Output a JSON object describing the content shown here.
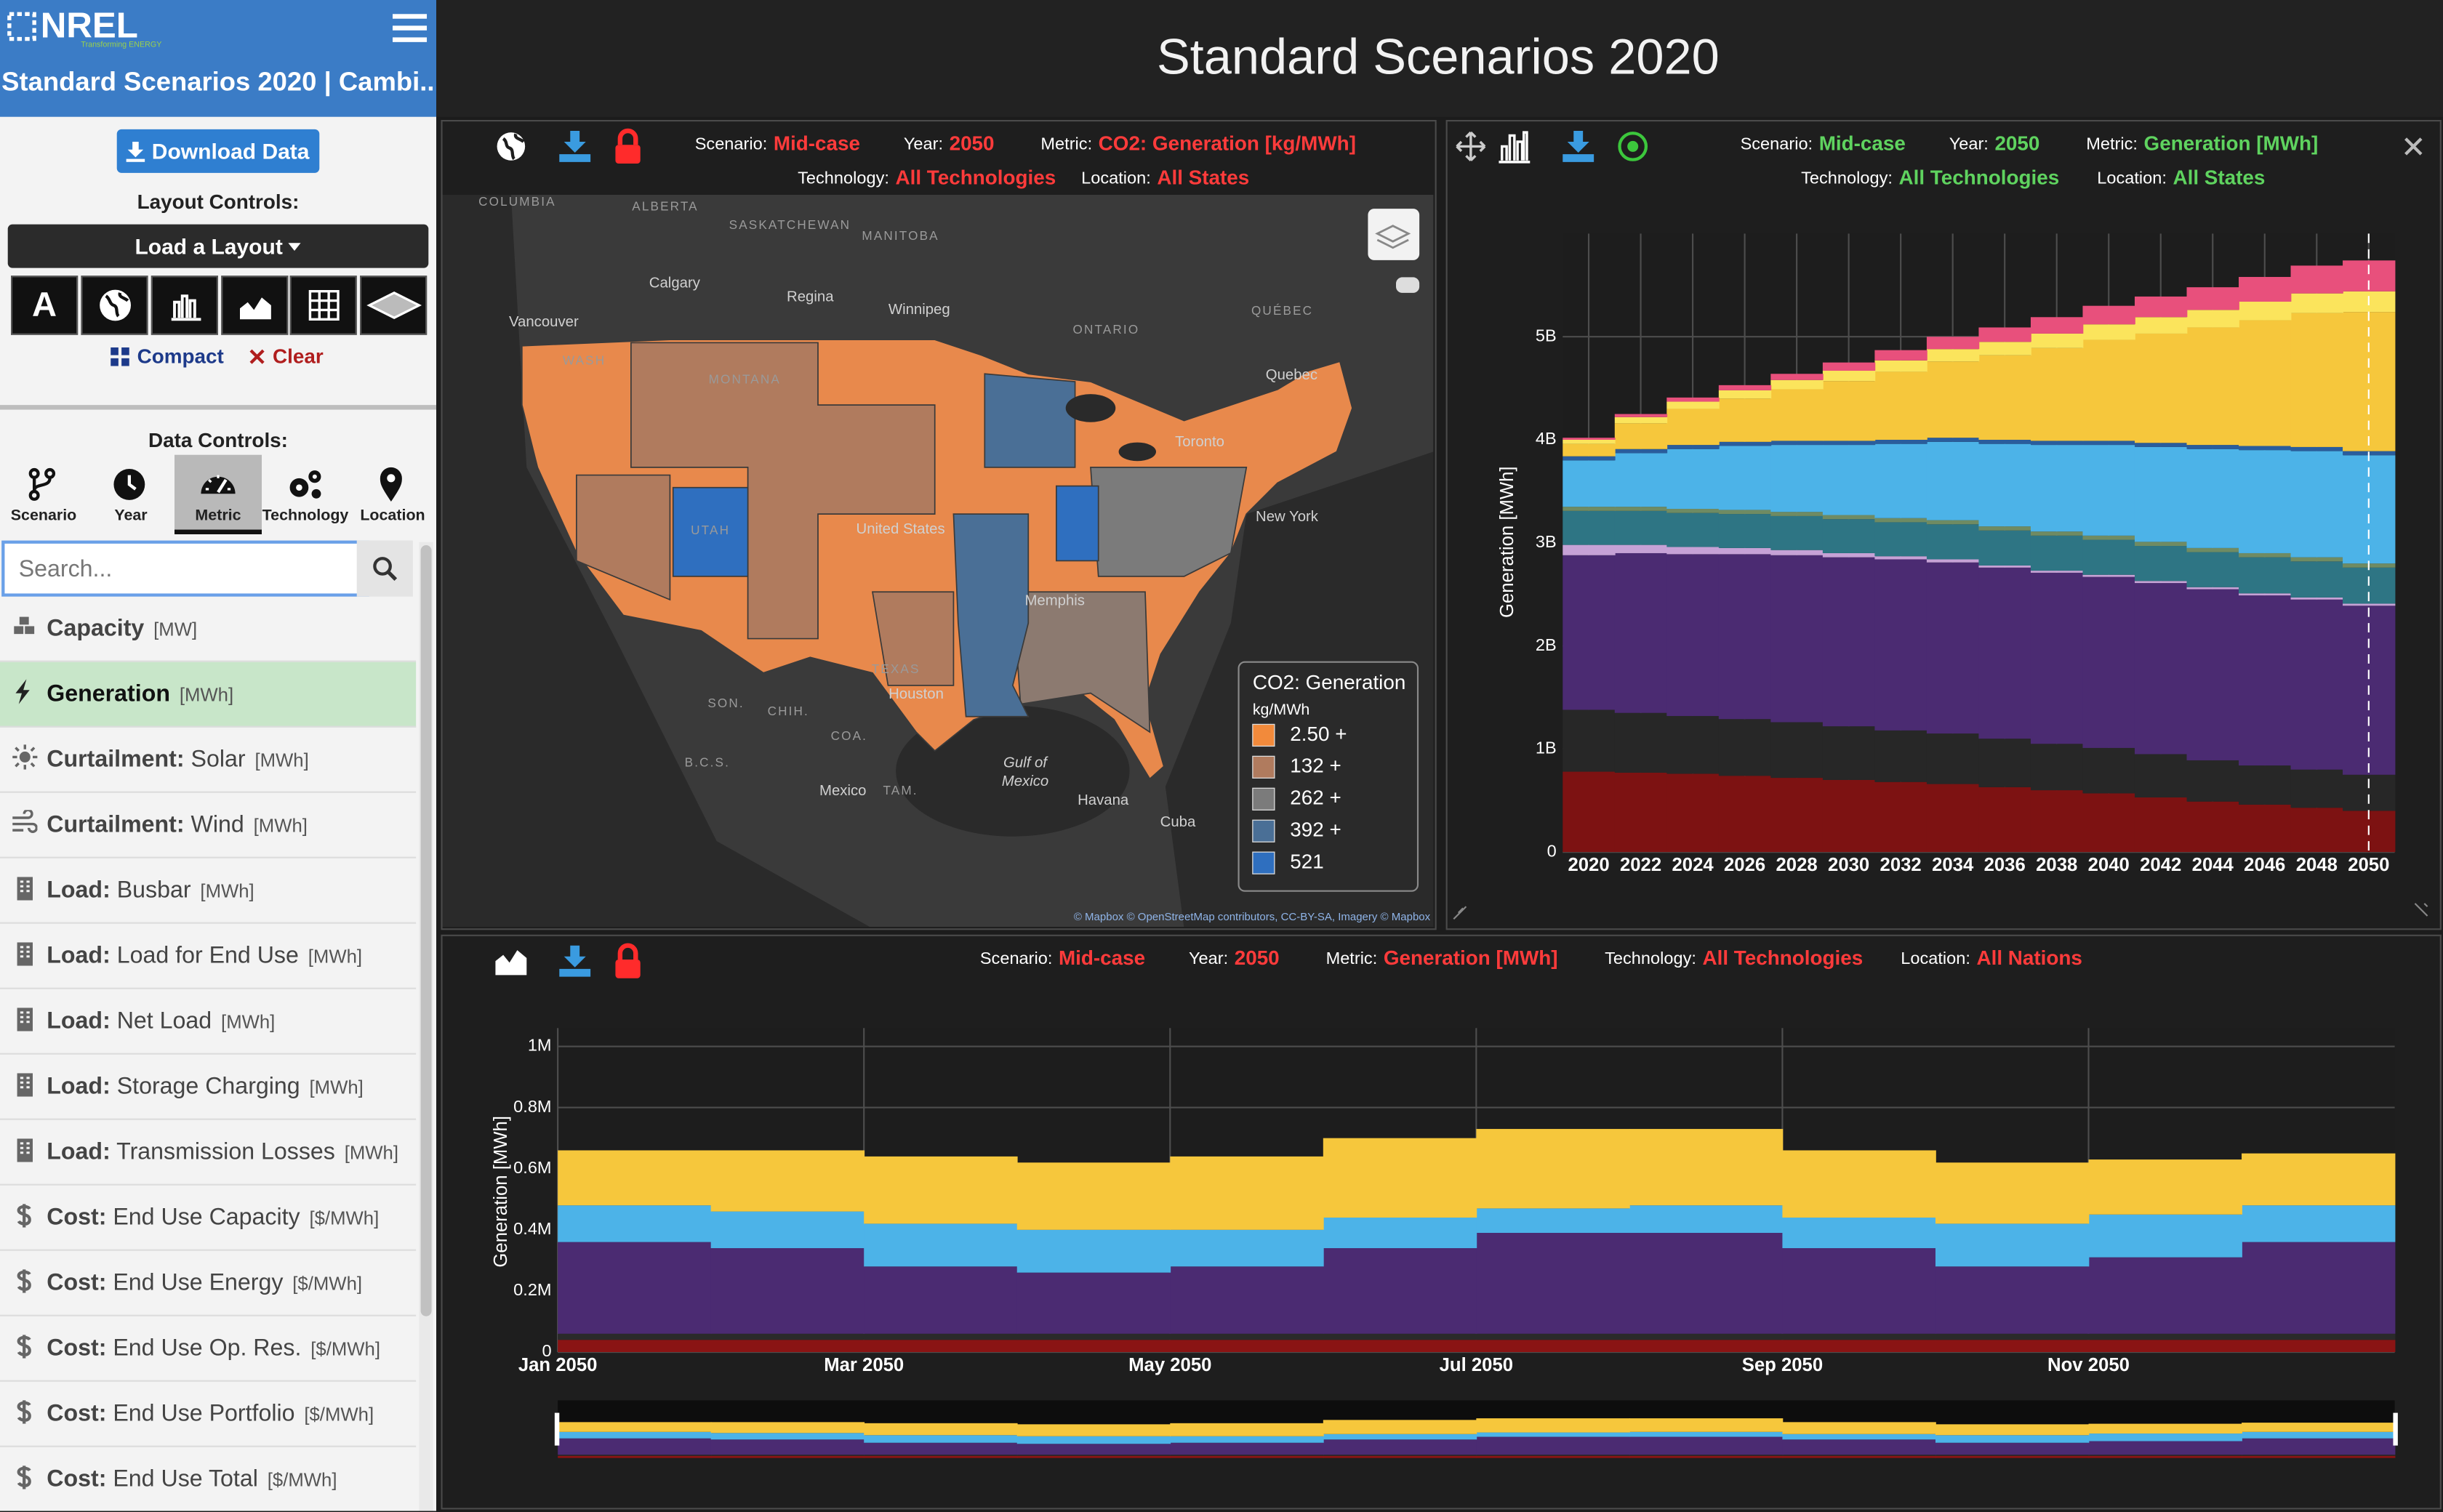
{
  "sidebar": {
    "brand": "NREL",
    "tagline": "Transforming ENERGY",
    "app_title": "Standard Scenarios 2020 | Cambi...",
    "download_button": "Download Data",
    "layout_controls_label": "Layout Controls:",
    "load_layout": "Load a Layout",
    "layout_icon_text": "A",
    "compact": "Compact",
    "clear": "Clear",
    "data_controls_label": "Data Controls:",
    "tabs": [
      {
        "label": "Scenario"
      },
      {
        "label": "Year"
      },
      {
        "label": "Metric",
        "selected": true
      },
      {
        "label": "Technology"
      },
      {
        "label": "Location"
      }
    ],
    "search_placeholder": "Search...",
    "metrics": [
      {
        "label": "Capacity",
        "unit": "[MW]"
      },
      {
        "label": "Generation",
        "unit": "[MWh]",
        "selected": true
      },
      {
        "label": "Curtailment:",
        "detail": "Solar",
        "unit": "[MWh]"
      },
      {
        "label": "Curtailment:",
        "detail": "Wind",
        "unit": "[MWh]"
      },
      {
        "label": "Load:",
        "detail": "Busbar",
        "unit": "[MWh]"
      },
      {
        "label": "Load:",
        "detail": "Load for End Use",
        "unit": "[MWh]"
      },
      {
        "label": "Load:",
        "detail": "Net Load",
        "unit": "[MWh]"
      },
      {
        "label": "Load:",
        "detail": "Storage Charging",
        "unit": "[MWh]"
      },
      {
        "label": "Load:",
        "detail": "Transmission Losses",
        "unit": "[MWh]"
      },
      {
        "label": "Cost:",
        "detail": "End Use Capacity",
        "unit": "[$/MWh]"
      },
      {
        "label": "Cost:",
        "detail": "End Use Energy",
        "unit": "[$/MWh]"
      },
      {
        "label": "Cost:",
        "detail": "End Use Op. Res.",
        "unit": "[$/MWh]"
      },
      {
        "label": "Cost:",
        "detail": "End Use Portfolio",
        "unit": "[$/MWh]"
      },
      {
        "label": "Cost:",
        "detail": "End Use Total",
        "unit": "[$/MWh]"
      }
    ]
  },
  "page_title": "Standard Scenarios 2020",
  "panels": [
    {
      "accent_color": "#ff3b3b",
      "filters": [
        {
          "label": "Scenario:",
          "value": "Mid-case"
        },
        {
          "label": "Year:",
          "value": "2050"
        },
        {
          "label": "Metric:",
          "value": "CO2: Generation [kg/MWh]"
        },
        {
          "label": "Technology:",
          "value": "All Technologies"
        },
        {
          "label": "Location:",
          "value": "All States"
        }
      ]
    },
    {
      "accent_color": "#5fd35f",
      "filters": [
        {
          "label": "Scenario:",
          "value": "Mid-case"
        },
        {
          "label": "Year:",
          "value": "2050"
        },
        {
          "label": "Metric:",
          "value": "Generation [MWh]"
        },
        {
          "label": "Technology:",
          "value": "All Technologies"
        },
        {
          "label": "Location:",
          "value": "All States"
        }
      ]
    },
    {
      "accent_color": "#ff3b3b",
      "filters": [
        {
          "label": "Scenario:",
          "value": "Mid-case"
        },
        {
          "label": "Year:",
          "value": "2050"
        },
        {
          "label": "Metric:",
          "value": "Generation [MWh]"
        },
        {
          "label": "Technology:",
          "value": "All Technologies"
        },
        {
          "label": "Location:",
          "value": "All Nations"
        }
      ]
    }
  ],
  "map": {
    "legend": {
      "title": "CO2: Generation",
      "unit": "kg/MWh",
      "items": [
        {
          "label": "2.50 +",
          "color": "#f28a3b"
        },
        {
          "label": "132 +",
          "color": "#b07b5e"
        },
        {
          "label": "262 +",
          "color": "#7b7b7b"
        },
        {
          "label": "392 +",
          "color": "#4a6f96"
        },
        {
          "label": "521",
          "color": "#2f6fbf"
        }
      ]
    },
    "places": [
      "COLUMBIA",
      "ALBERTA",
      "SASKATCHEWAN",
      "MANITOBA",
      "ONTARIO",
      "QUÉBEC",
      "Calgary",
      "Regina",
      "Winnipeg",
      "Vancouver",
      "Quebec",
      "Toronto",
      "New York",
      "Houston",
      "Memphis",
      "Mexico",
      "Havana",
      "Cuba",
      "Gulf of",
      "Mexico",
      "WASH",
      "MONTANA",
      "UTAH",
      "TEXAS",
      "SON.",
      "CHIH.",
      "COA.",
      "TAM.",
      "B.C.S.",
      "United States"
    ],
    "attribution": "© Mapbox © OpenStreetMap contributors, CC-BY-SA, Imagery © Mapbox"
  },
  "chart_data": [
    {
      "type": "bar",
      "stacked": true,
      "x_tick_align": "center",
      "ylabel": "Generation [MWh]",
      "grid": true,
      "categories": [
        "2020",
        "2022",
        "2024",
        "2026",
        "2028",
        "2030",
        "2032",
        "2034",
        "2036",
        "2038",
        "2040",
        "2042",
        "2044",
        "2046",
        "2048",
        "2050"
      ],
      "ylim": [
        0,
        6000000000.0
      ],
      "yticks": [
        0,
        {
          "value": 1000000000.0,
          "label": "1B"
        },
        {
          "value": 2000000000.0,
          "label": "2B"
        },
        {
          "value": 3000000000.0,
          "label": "3B"
        },
        {
          "value": 4000000000.0,
          "label": "4B"
        },
        {
          "value": 5000000000.0,
          "label": "5B"
        }
      ],
      "series": [
        {
          "color": "#7d1212",
          "values": [
            780000000.0,
            770000000.0,
            760000000.0,
            740000000.0,
            720000000.0,
            700000000.0,
            680000000.0,
            660000000.0,
            630000000.0,
            600000000.0,
            570000000.0,
            530000000.0,
            490000000.0,
            460000000.0,
            430000000.0,
            400000000.0
          ]
        },
        {
          "color": "#272727",
          "values": [
            600000000.0,
            580000000.0,
            560000000.0,
            550000000.0,
            540000000.0,
            520000000.0,
            500000000.0,
            490000000.0,
            470000000.0,
            450000000.0,
            440000000.0,
            420000000.0,
            400000000.0,
            380000000.0,
            370000000.0,
            350000000.0
          ]
        },
        {
          "color": "#4b2b72",
          "values": [
            1500000000.0,
            1550000000.0,
            1570000000.0,
            1600000000.0,
            1620000000.0,
            1640000000.0,
            1660000000.0,
            1660000000.0,
            1660000000.0,
            1660000000.0,
            1660000000.0,
            1660000000.0,
            1660000000.0,
            1650000000.0,
            1650000000.0,
            1640000000.0
          ]
        },
        {
          "color": "#c6a2d6",
          "values": [
            100000000.0,
            80000000.0,
            70000000.0,
            60000000.0,
            50000000.0,
            40000000.0,
            30000000.0,
            30000000.0,
            20000000.0,
            20000000.0,
            20000000.0,
            20000000.0,
            20000000.0,
            20000000.0,
            20000000.0,
            20000000.0
          ]
        },
        {
          "color": "#2e7584",
          "values": [
            330000000.0,
            330000000.0,
            330000000.0,
            330000000.0,
            330000000.0,
            330000000.0,
            330000000.0,
            340000000.0,
            340000000.0,
            340000000.0,
            340000000.0,
            340000000.0,
            340000000.0,
            350000000.0,
            350000000.0,
            350000000.0
          ]
        },
        {
          "color": "#6f8b63",
          "values": [
            40000000.0,
            40000000.0,
            40000000.0,
            40000000.0,
            40000000.0,
            40000000.0,
            40000000.0,
            40000000.0,
            40000000.0,
            40000000.0,
            40000000.0,
            40000000.0,
            40000000.0,
            40000000.0,
            40000000.0,
            40000000.0
          ]
        },
        {
          "color": "#4cb3e8",
          "values": [
            450000000.0,
            520000000.0,
            580000000.0,
            620000000.0,
            650000000.0,
            680000000.0,
            720000000.0,
            760000000.0,
            800000000.0,
            840000000.0,
            880000000.0,
            920000000.0,
            960000000.0,
            1000000000.0,
            1030000000.0,
            1050000000.0
          ]
        },
        {
          "color": "#2a5d9c",
          "values": [
            40000000.0,
            40000000.0,
            40000000.0,
            40000000.0,
            40000000.0,
            40000000.0,
            40000000.0,
            40000000.0,
            40000000.0,
            40000000.0,
            40000000.0,
            40000000.0,
            40000000.0,
            40000000.0,
            40000000.0,
            40000000.0
          ]
        },
        {
          "color": "#f6c73c",
          "values": [
            120000000.0,
            250000000.0,
            350000000.0,
            420000000.0,
            500000000.0,
            580000000.0,
            660000000.0,
            740000000.0,
            820000000.0,
            900000000.0,
            980000000.0,
            1060000000.0,
            1140000000.0,
            1220000000.0,
            1300000000.0,
            1350000000.0
          ]
        },
        {
          "color": "#fbe45c",
          "values": [
            40000000.0,
            60000000.0,
            70000000.0,
            80000000.0,
            90000000.0,
            100000000.0,
            110000000.0,
            120000000.0,
            130000000.0,
            140000000.0,
            150000000.0,
            160000000.0,
            170000000.0,
            180000000.0,
            190000000.0,
            200000000.0
          ]
        },
        {
          "color": "#e8507c",
          "values": [
            20000000.0,
            30000000.0,
            40000000.0,
            50000000.0,
            60000000.0,
            80000000.0,
            100000000.0,
            120000000.0,
            140000000.0,
            160000000.0,
            180000000.0,
            200000000.0,
            220000000.0,
            240000000.0,
            270000000.0,
            300000000.0
          ]
        }
      ]
    },
    {
      "type": "bar",
      "stacked": true,
      "x_tick_align": "start",
      "ylabel": "Generation [MWh]",
      "grid": true,
      "range_slider": true,
      "categories": [
        "Jan 2050",
        null,
        "Mar 2050",
        null,
        "May 2050",
        null,
        "Jul 2050",
        null,
        "Sep 2050",
        null,
        "Nov 2050",
        null
      ],
      "ylim": [
        0,
        1060000
      ],
      "yticks": [
        0,
        {
          "value": 200000,
          "label": "0.2M"
        },
        {
          "value": 400000,
          "label": "0.4M"
        },
        {
          "value": 600000,
          "label": "0.6M"
        },
        {
          "value": 800000,
          "label": "0.8M"
        },
        {
          "value": 1000000,
          "label": "1M"
        }
      ],
      "series": [
        {
          "color": "#8a1414",
          "values": [
            40000,
            40000,
            40000,
            40000,
            40000,
            40000,
            40000,
            40000,
            40000,
            40000,
            40000,
            40000
          ]
        },
        {
          "color": "#2a2a2a",
          "values": [
            20000,
            20000,
            20000,
            20000,
            20000,
            20000,
            20000,
            20000,
            20000,
            20000,
            20000,
            20000
          ]
        },
        {
          "color": "#4b2b72",
          "values": [
            300000,
            280000,
            220000,
            200000,
            220000,
            280000,
            330000,
            330000,
            280000,
            220000,
            250000,
            300000
          ]
        },
        {
          "color": "#4cb3e8",
          "values": [
            120000,
            120000,
            140000,
            140000,
            120000,
            100000,
            80000,
            90000,
            100000,
            140000,
            140000,
            120000
          ]
        },
        {
          "color": "#f6c73c",
          "values": [
            180000,
            200000,
            220000,
            220000,
            240000,
            260000,
            260000,
            250000,
            220000,
            200000,
            180000,
            170000
          ]
        }
      ]
    }
  ]
}
